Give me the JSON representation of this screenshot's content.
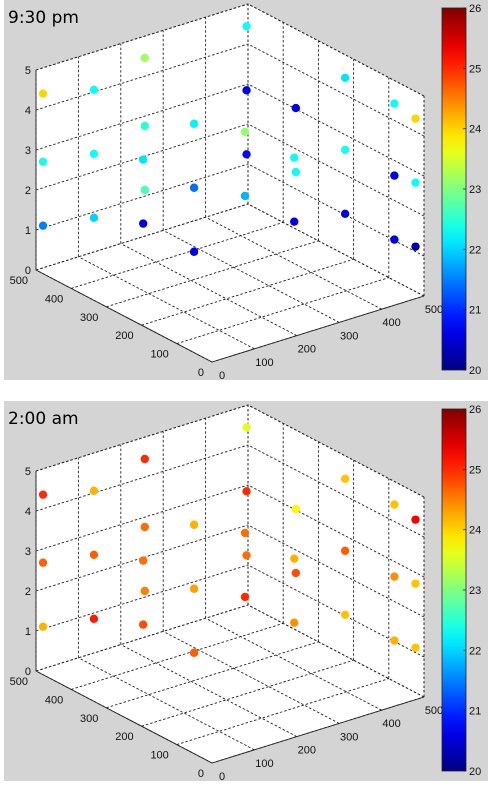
{
  "chart_data": [
    {
      "type": "scatter3d",
      "title": "9:30 pm",
      "axes": {
        "x_ticks": [
          0,
          100,
          200,
          300,
          400,
          500
        ],
        "y_ticks": [
          0,
          100,
          200,
          300,
          400,
          500
        ],
        "z_ticks": [
          0,
          1,
          2,
          3,
          4,
          5
        ],
        "xlim": [
          0,
          500
        ],
        "ylim": [
          0,
          500
        ],
        "zlim": [
          0,
          5
        ],
        "grid": true
      },
      "colorbar": {
        "min": 20,
        "max": 26,
        "ticks": [
          20,
          21,
          22,
          23,
          24,
          25,
          26
        ],
        "colormap": "jet",
        "position": "right"
      },
      "points": [
        {
          "x": 0,
          "y": 480,
          "z": 4.5,
          "c": 24.0
        },
        {
          "x": 0,
          "y": 480,
          "z": 2.8,
          "c": 22.4
        },
        {
          "x": 0,
          "y": 480,
          "z": 1.2,
          "c": 21.5
        },
        {
          "x": 120,
          "y": 480,
          "z": 4.2,
          "c": 22.3
        },
        {
          "x": 120,
          "y": 480,
          "z": 2.6,
          "c": 22.3
        },
        {
          "x": 120,
          "y": 480,
          "z": 1.0,
          "c": 22.0
        },
        {
          "x": 240,
          "y": 480,
          "z": 4.6,
          "c": 23.2
        },
        {
          "x": 240,
          "y": 480,
          "z": 2.9,
          "c": 22.5
        },
        {
          "x": 240,
          "y": 480,
          "z": 1.3,
          "c": 22.7
        },
        {
          "x": 120,
          "y": 340,
          "z": 3.1,
          "c": 22.1
        },
        {
          "x": 120,
          "y": 340,
          "z": 1.5,
          "c": 20.6
        },
        {
          "x": 240,
          "y": 340,
          "z": 3.6,
          "c": 22.2
        },
        {
          "x": 240,
          "y": 340,
          "z": 2.0,
          "c": 21.4
        },
        {
          "x": 240,
          "y": 340,
          "z": 0.4,
          "c": 20.6
        },
        {
          "x": 360,
          "y": 340,
          "z": 3.0,
          "c": 23.1
        },
        {
          "x": 360,
          "y": 340,
          "z": 1.4,
          "c": 21.8
        },
        {
          "x": 480,
          "y": 480,
          "z": 4.6,
          "c": 22.3
        },
        {
          "x": 480,
          "y": 480,
          "z": 3.0,
          "c": 20.6
        },
        {
          "x": 480,
          "y": 480,
          "z": 1.4,
          "c": 20.8
        },
        {
          "x": 480,
          "y": 340,
          "z": 3.2,
          "c": 20.6
        },
        {
          "x": 480,
          "y": 340,
          "z": 1.6,
          "c": 22.3
        },
        {
          "x": 480,
          "y": 200,
          "z": 4.6,
          "c": 22.1
        },
        {
          "x": 480,
          "y": 200,
          "z": 2.8,
          "c": 22.4
        },
        {
          "x": 480,
          "y": 200,
          "z": 1.2,
          "c": 20.6
        },
        {
          "x": 480,
          "y": 60,
          "z": 4.6,
          "c": 22.3
        },
        {
          "x": 480,
          "y": 60,
          "z": 2.8,
          "c": 20.6
        },
        {
          "x": 480,
          "y": 60,
          "z": 1.2,
          "c": 20.6
        },
        {
          "x": 360,
          "y": 200,
          "z": 3.0,
          "c": 22.3
        },
        {
          "x": 360,
          "y": 200,
          "z": 1.4,
          "c": 20.6
        },
        {
          "x": 480,
          "y": 0,
          "z": 4.5,
          "c": 24.0
        },
        {
          "x": 480,
          "y": 0,
          "z": 2.9,
          "c": 22.3
        },
        {
          "x": 480,
          "y": 0,
          "z": 1.3,
          "c": 20.3
        }
      ]
    },
    {
      "type": "scatter3d",
      "title": "2:00 am",
      "axes": {
        "x_ticks": [
          0,
          100,
          200,
          300,
          400,
          500
        ],
        "y_ticks": [
          0,
          100,
          200,
          300,
          400,
          500
        ],
        "z_ticks": [
          0,
          1,
          2,
          3,
          4,
          5
        ],
        "xlim": [
          0,
          500
        ],
        "ylim": [
          0,
          500
        ],
        "zlim": [
          0,
          5
        ],
        "grid": true
      },
      "colorbar": {
        "min": 20,
        "max": 26,
        "ticks": [
          20,
          21,
          22,
          23,
          24,
          25,
          26
        ],
        "colormap": "jet",
        "position": "right"
      },
      "points": [
        {
          "x": 0,
          "y": 480,
          "z": 4.5,
          "c": 25.0
        },
        {
          "x": 0,
          "y": 480,
          "z": 2.8,
          "c": 24.7
        },
        {
          "x": 0,
          "y": 480,
          "z": 1.2,
          "c": 24.2
        },
        {
          "x": 120,
          "y": 480,
          "z": 4.2,
          "c": 24.2
        },
        {
          "x": 120,
          "y": 480,
          "z": 2.6,
          "c": 24.7
        },
        {
          "x": 120,
          "y": 480,
          "z": 1.0,
          "c": 25.1
        },
        {
          "x": 240,
          "y": 480,
          "z": 4.6,
          "c": 25.0
        },
        {
          "x": 240,
          "y": 480,
          "z": 2.9,
          "c": 24.6
        },
        {
          "x": 240,
          "y": 480,
          "z": 1.3,
          "c": 24.5
        },
        {
          "x": 120,
          "y": 340,
          "z": 3.1,
          "c": 24.6
        },
        {
          "x": 120,
          "y": 340,
          "z": 1.5,
          "c": 24.8
        },
        {
          "x": 240,
          "y": 340,
          "z": 3.6,
          "c": 24.2
        },
        {
          "x": 240,
          "y": 340,
          "z": 2.0,
          "c": 24.3
        },
        {
          "x": 240,
          "y": 340,
          "z": 0.4,
          "c": 24.7
        },
        {
          "x": 360,
          "y": 340,
          "z": 3.0,
          "c": 24.6
        },
        {
          "x": 360,
          "y": 340,
          "z": 1.4,
          "c": 25.0
        },
        {
          "x": 480,
          "y": 480,
          "z": 4.6,
          "c": 23.6
        },
        {
          "x": 480,
          "y": 480,
          "z": 3.0,
          "c": 25.0
        },
        {
          "x": 480,
          "y": 480,
          "z": 1.4,
          "c": 24.6
        },
        {
          "x": 480,
          "y": 340,
          "z": 3.2,
          "c": 23.8
        },
        {
          "x": 480,
          "y": 340,
          "z": 1.6,
          "c": 24.8
        },
        {
          "x": 480,
          "y": 200,
          "z": 4.6,
          "c": 24.1
        },
        {
          "x": 480,
          "y": 200,
          "z": 2.8,
          "c": 24.7
        },
        {
          "x": 480,
          "y": 200,
          "z": 1.2,
          "c": 24.1
        },
        {
          "x": 480,
          "y": 60,
          "z": 4.6,
          "c": 24.1
        },
        {
          "x": 480,
          "y": 60,
          "z": 2.8,
          "c": 24.4
        },
        {
          "x": 480,
          "y": 60,
          "z": 1.2,
          "c": 24.2
        },
        {
          "x": 360,
          "y": 200,
          "z": 3.0,
          "c": 24.2
        },
        {
          "x": 360,
          "y": 200,
          "z": 1.4,
          "c": 24.4
        },
        {
          "x": 480,
          "y": 0,
          "z": 4.5,
          "c": 25.3
        },
        {
          "x": 480,
          "y": 0,
          "z": 2.9,
          "c": 24.1
        },
        {
          "x": 480,
          "y": 0,
          "z": 1.3,
          "c": 24.1
        }
      ]
    }
  ]
}
